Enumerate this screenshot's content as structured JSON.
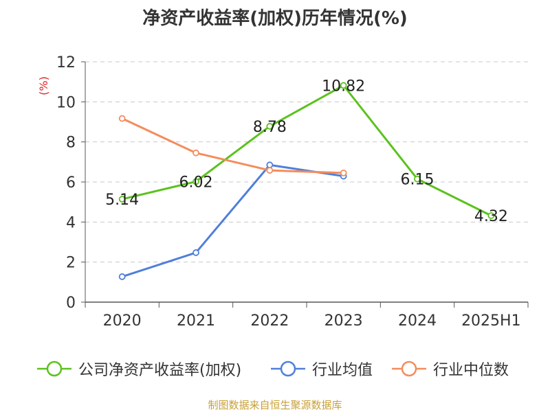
{
  "title": "净资产收益率(加权)历年情况(%)",
  "source": "制图数据来自恒生聚源数据库",
  "colors": {
    "source": "#c8a038"
  },
  "chart_data": {
    "type": "line",
    "title": "净资产收益率(加权)历年情况(%)",
    "ylabel": "(%)",
    "xlabel": "",
    "categories": [
      "2020",
      "2021",
      "2022",
      "2023",
      "2024",
      "2025H1"
    ],
    "ylim": [
      0,
      12
    ],
    "yticks": [
      0,
      2,
      4,
      6,
      8,
      10,
      12
    ],
    "grid": true,
    "legend_position": "bottom",
    "series": [
      {
        "name": "公司净资产收益率(加权)",
        "color": "#5ac21c",
        "values": [
          5.14,
          6.02,
          8.78,
          10.82,
          6.15,
          4.32
        ],
        "labels": [
          "5.14",
          "6.02",
          "8.78",
          "10.82",
          "6.15",
          "4.32"
        ]
      },
      {
        "name": "行业均值",
        "color": "#4f7fd9",
        "values": [
          1.27,
          2.47,
          6.85,
          6.29,
          null,
          null
        ]
      },
      {
        "name": "行业中位数",
        "color": "#f48c5c",
        "values": [
          9.17,
          7.45,
          6.58,
          6.45,
          null,
          null
        ]
      }
    ]
  }
}
